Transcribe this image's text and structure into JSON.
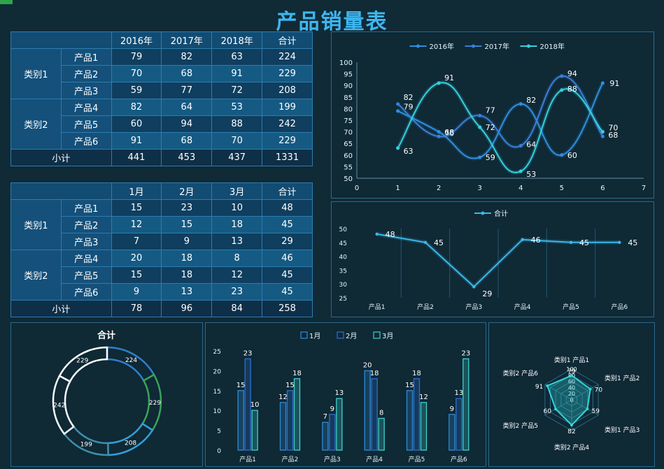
{
  "title": "产品销量表",
  "tables": [
    {
      "headers": [
        "2016年",
        "2017年",
        "2018年",
        "合计"
      ],
      "groups": [
        {
          "label": "类别1",
          "rows": [
            {
              "name": "产品1",
              "values": [
                79,
                82,
                63,
                224
              ]
            },
            {
              "name": "产品2",
              "values": [
                70,
                68,
                91,
                229
              ]
            },
            {
              "name": "产品3",
              "values": [
                59,
                77,
                72,
                208
              ]
            }
          ]
        },
        {
          "label": "类别2",
          "rows": [
            {
              "name": "产品4",
              "values": [
                82,
                64,
                53,
                199
              ]
            },
            {
              "name": "产品5",
              "values": [
                60,
                94,
                88,
                242
              ]
            },
            {
              "name": "产品6",
              "values": [
                91,
                68,
                70,
                229
              ]
            }
          ]
        }
      ],
      "subtotal": {
        "label": "小计",
        "values": [
          441,
          453,
          437,
          1331
        ]
      }
    },
    {
      "headers": [
        "1月",
        "2月",
        "3月",
        "合计"
      ],
      "groups": [
        {
          "label": "类别1",
          "rows": [
            {
              "name": "产品1",
              "values": [
                15,
                23,
                10,
                48
              ]
            },
            {
              "name": "产品2",
              "values": [
                12,
                15,
                18,
                45
              ]
            },
            {
              "name": "产品3",
              "values": [
                7,
                9,
                13,
                29
              ]
            }
          ]
        },
        {
          "label": "类别2",
          "rows": [
            {
              "name": "产品4",
              "values": [
                20,
                18,
                8,
                46
              ]
            },
            {
              "name": "产品5",
              "values": [
                15,
                18,
                12,
                45
              ]
            },
            {
              "name": "产品6",
              "values": [
                9,
                13,
                23,
                45
              ]
            }
          ]
        }
      ],
      "subtotal": {
        "label": "小计",
        "values": [
          78,
          96,
          84,
          258
        ]
      }
    }
  ],
  "chart_data": [
    {
      "type": "line",
      "smooth": true,
      "legend": "top-center",
      "x": [
        1,
        2,
        3,
        4,
        5,
        6
      ],
      "xlim": [
        0,
        7
      ],
      "xticks": [
        0,
        1,
        2,
        3,
        4,
        5,
        6,
        7
      ],
      "ylim": [
        50,
        100
      ],
      "yticks": [
        50,
        55,
        60,
        65,
        70,
        75,
        80,
        85,
        90,
        95,
        100
      ],
      "series": [
        {
          "name": "2016年",
          "values": [
            79,
            70,
            59,
            82,
            60,
            91
          ],
          "color": "#2f8fe0"
        },
        {
          "name": "2017年",
          "values": [
            82,
            68,
            77,
            64,
            94,
            68
          ],
          "color": "#3a7fd8"
        },
        {
          "name": "2018年",
          "values": [
            63,
            91,
            72,
            53,
            88,
            70
          ],
          "color": "#35d0e0"
        }
      ]
    },
    {
      "type": "line",
      "legend": "top-center",
      "categories": [
        "产品1",
        "产品2",
        "产品3",
        "产品4",
        "产品5",
        "产品6"
      ],
      "ylim": [
        25,
        50
      ],
      "yticks": [
        25,
        30,
        35,
        40,
        45,
        50
      ],
      "series": [
        {
          "name": "合计",
          "values": [
            48,
            45,
            29,
            46,
            45,
            45
          ],
          "color": "#3bb8ea"
        }
      ]
    },
    {
      "type": "pie",
      "title": "合计",
      "values": [
        224,
        229,
        208,
        199,
        242,
        229
      ]
    },
    {
      "type": "bar",
      "legend": "top-center",
      "categories": [
        "产品1",
        "产品2",
        "产品3",
        "产品4",
        "产品5",
        "产品6"
      ],
      "ylim": [
        0,
        25
      ],
      "yticks": [
        0,
        5,
        10,
        15,
        20,
        25
      ],
      "series": [
        {
          "name": "1月",
          "values": [
            15,
            12,
            7,
            20,
            15,
            9
          ],
          "color": "#2f8bd8"
        },
        {
          "name": "2月",
          "values": [
            23,
            15,
            9,
            18,
            18,
            13
          ],
          "color": "#2d6fd0"
        },
        {
          "name": "3月",
          "values": [
            10,
            18,
            13,
            8,
            12,
            23
          ],
          "color": "#3cd2cf"
        }
      ]
    },
    {
      "type": "radar",
      "axes": [
        "类别1 产品1",
        "类别1 产品2",
        "类别1 产品3",
        "类别2 产品4",
        "类别2 产品5",
        "类别2 产品6"
      ],
      "rlim": [
        0,
        100
      ],
      "rticks": [
        0,
        20,
        40,
        60,
        80,
        100
      ],
      "values": [
        79,
        70,
        59,
        82,
        60,
        91
      ]
    }
  ]
}
